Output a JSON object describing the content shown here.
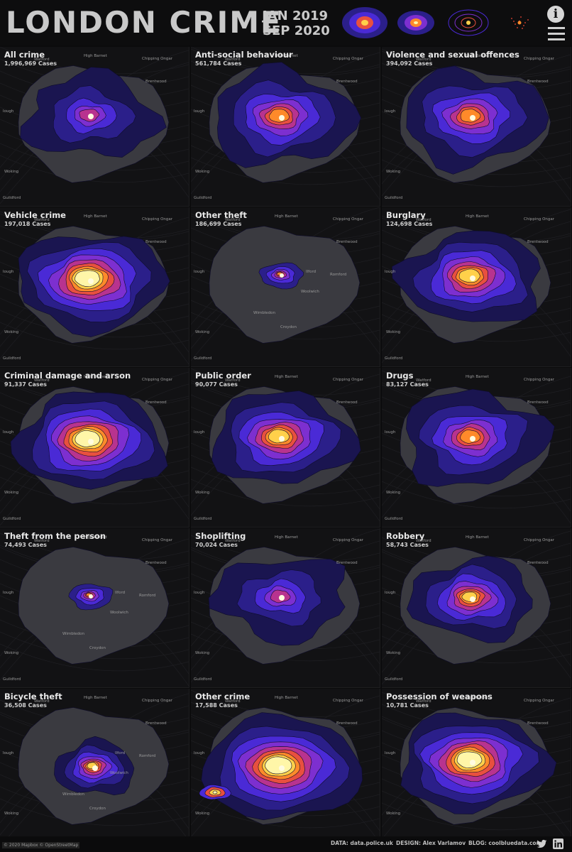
{
  "header": {
    "title": "LONDON CRIME",
    "date_start": "JAN 2019",
    "date_end": "SEP 2020",
    "info_label": "i"
  },
  "panels": [
    {
      "title": "All crime",
      "cases": "1,996,969 Cases",
      "style": "spread-cool"
    },
    {
      "title": "Anti-social behaviour",
      "cases": "561,784 Cases",
      "style": "spread-mid"
    },
    {
      "title": "Violence and sexual offences",
      "cases": "394,092 Cases",
      "style": "spread-mid"
    },
    {
      "title": "Vehicle crime",
      "cases": "197,018 Cases",
      "style": "hot-wide"
    },
    {
      "title": "Other theft",
      "cases": "186,699 Cases",
      "style": "tiny"
    },
    {
      "title": "Burglary",
      "cases": "124,698 Cases",
      "style": "wide"
    },
    {
      "title": "Criminal damage and arson",
      "cases": "91,337 Cases",
      "style": "hot-wide"
    },
    {
      "title": "Public order",
      "cases": "90,077 Cases",
      "style": "wide"
    },
    {
      "title": "Drugs",
      "cases": "83,127 Cases",
      "style": "spread-mid"
    },
    {
      "title": "Theft from the person",
      "cases": "74,493 Cases",
      "style": "tiny"
    },
    {
      "title": "Shoplifting",
      "cases": "70,024 Cases",
      "style": "spread-cool"
    },
    {
      "title": "Robbery",
      "cases": "58,743 Cases",
      "style": "mid"
    },
    {
      "title": "Bicycle theft",
      "cases": "36,508 Cases",
      "style": "bike"
    },
    {
      "title": "Other crime",
      "cases": "17,588 Cases",
      "style": "other"
    },
    {
      "title": "Possession of weapons",
      "cases": "10,781 Cases",
      "style": "hot-wide"
    }
  ],
  "places": {
    "chipping_ongar": "Chipping Ongar",
    "watford": "Watford",
    "high_barnet": "High Barnet",
    "brentwood": "Brentwood",
    "romford": "Romford",
    "ilford": "Ilford",
    "woolwich": "Woolwich",
    "wimbledon": "Wimbledon",
    "croydon": "Croydon",
    "woking": "Woking",
    "guildford": "Guildford",
    "slough": "lough"
  },
  "footer": {
    "copyright": "© 2020 Mapbox © OpenStreetMap",
    "data": "DATA: data.police.uk",
    "design": "DESIGN: Alex Varlamov",
    "blog": "BLOG: coolbluedata.com"
  },
  "colors": {
    "background": "#121214",
    "london_area": "#3a3a40",
    "ramp": [
      "#1a1550",
      "#2b1f8a",
      "#4a2ad6",
      "#7d2fd0",
      "#b8338f",
      "#e8503f",
      "#ff8a2a",
      "#ffd04a",
      "#fff6a8"
    ]
  },
  "icons": {
    "info": "info-icon",
    "menu": "hamburger-menu-icon",
    "twitter": "twitter-icon",
    "linkedin": "linkedin-icon"
  }
}
